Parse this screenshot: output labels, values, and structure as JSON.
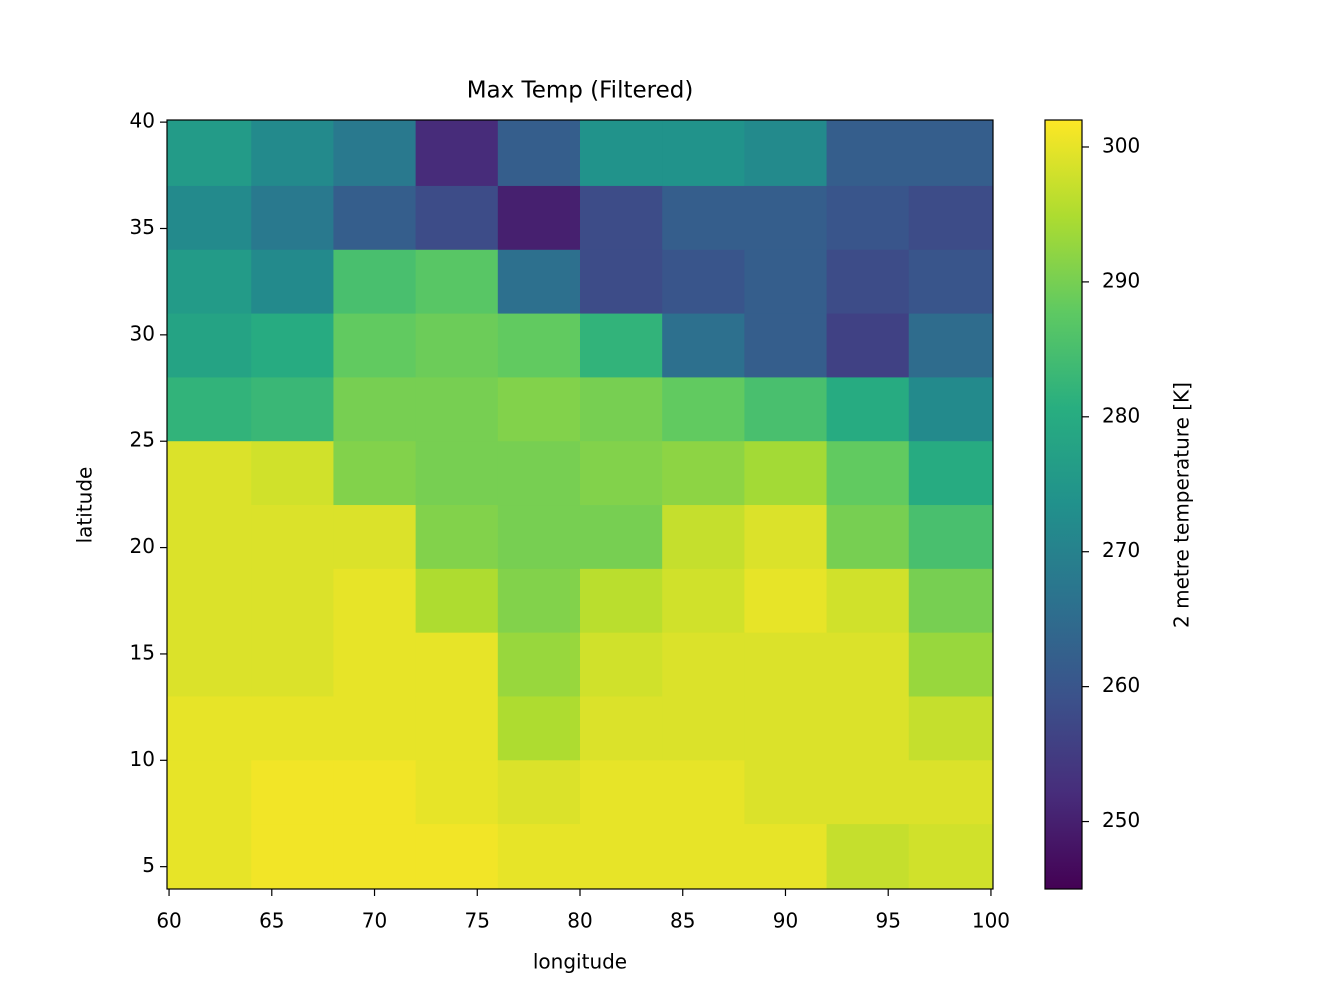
{
  "chart_data": {
    "type": "heatmap",
    "title": "Max Temp (Filtered)",
    "xlabel": "longitude",
    "ylabel": "latitude",
    "colorbar_label": "2 metre temperature [K]",
    "colormap": "viridis",
    "x": [
      62,
      66,
      70,
      74,
      78,
      82,
      86,
      90,
      94,
      98
    ],
    "y": [
      38.5,
      35.5,
      32.5,
      29.5,
      26.5,
      23.5,
      20.5,
      17.5,
      14.5,
      11.5,
      8.5,
      5.5
    ],
    "values": [
      [
        276,
        272,
        268,
        252,
        262,
        274,
        274,
        272,
        262,
        262
      ],
      [
        272,
        268,
        262,
        258,
        250,
        258,
        262,
        262,
        260,
        258
      ],
      [
        276,
        272,
        285,
        287,
        266,
        258,
        260,
        262,
        258,
        260
      ],
      [
        278,
        280,
        288,
        289,
        288,
        282,
        266,
        262,
        256,
        265
      ],
      [
        282,
        283,
        290,
        290,
        291,
        290,
        288,
        285,
        280,
        272
      ],
      [
        299,
        298,
        291,
        290,
        290,
        291,
        292,
        294,
        288,
        280
      ],
      [
        299,
        299,
        299,
        291,
        290,
        290,
        297,
        299,
        290,
        285
      ],
      [
        299,
        299,
        300,
        295,
        291,
        296,
        298,
        300,
        298,
        290
      ],
      [
        299,
        299,
        300,
        300,
        293,
        298,
        299,
        299,
        299,
        293
      ],
      [
        300,
        300,
        300,
        300,
        295,
        299,
        299,
        299,
        299,
        297
      ],
      [
        300,
        301,
        301,
        300,
        299,
        300,
        300,
        299,
        299,
        299
      ],
      [
        300,
        301,
        301,
        301,
        300,
        300,
        300,
        300,
        297,
        298
      ]
    ],
    "xlim": [
      59.9,
      100.1
    ],
    "ylim": [
      3.95,
      40.1
    ],
    "xticks": [
      60,
      65,
      70,
      75,
      80,
      85,
      90,
      95,
      100
    ],
    "yticks": [
      5,
      10,
      15,
      20,
      25,
      30,
      35,
      40
    ],
    "clim": [
      245,
      302
    ],
    "cticks": [
      250,
      260,
      270,
      280,
      290,
      300
    ]
  }
}
